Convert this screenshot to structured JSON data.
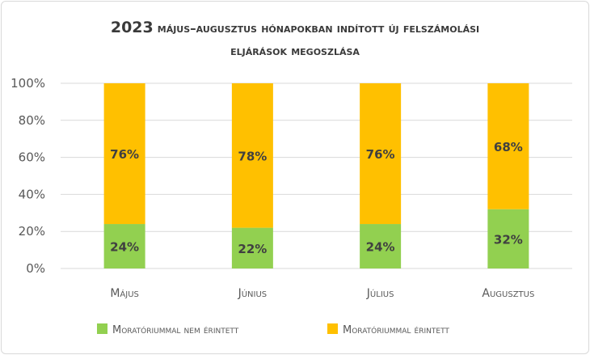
{
  "chart_data": {
    "type": "bar",
    "stacked": true,
    "title_line1_prefix": "2023",
    "title_line1_rest": "május–augusztus hónapokban indított új felszámolási",
    "title_line2": "eljárások megoszlása",
    "categories": [
      "Május",
      "Június",
      "Július",
      "Augusztus"
    ],
    "series": [
      {
        "name": "Moratóriummal nem érintett",
        "values": [
          24,
          22,
          24,
          32
        ],
        "labels": [
          "24%",
          "22%",
          "24%",
          "32%"
        ],
        "color": "#92d050"
      },
      {
        "name": "Moratóriummal érintett",
        "values": [
          76,
          78,
          76,
          68
        ],
        "labels": [
          "76%",
          "78%",
          "76%",
          "68%"
        ],
        "color": "#ffc000"
      }
    ],
    "yticks": [
      "0%",
      "20%",
      "40%",
      "60%",
      "80%",
      "100%"
    ],
    "ylim": [
      0,
      100
    ],
    "grid": true,
    "legend_position": "bottom"
  }
}
